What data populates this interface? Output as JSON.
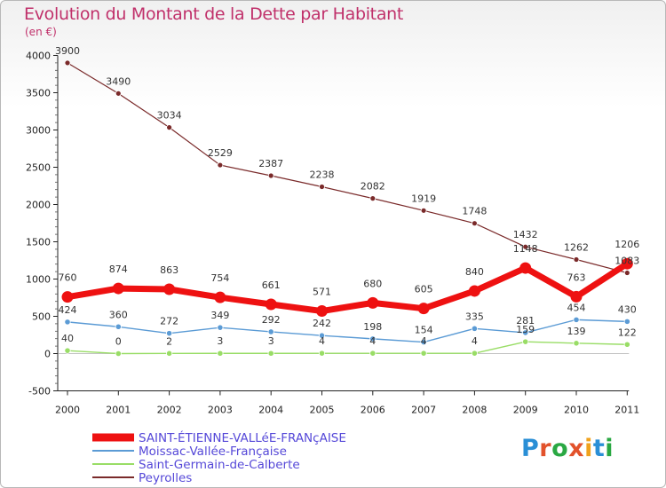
{
  "title": "Evolution du Montant de la Dette par Habitant",
  "unit": "(en €)",
  "logo": {
    "text": "Proxiti",
    "colors": [
      "#2a8fd6",
      "#e2522b",
      "#2aa843",
      "#e2522b",
      "#f0a21c",
      "#2a8fd6",
      "#2aa843"
    ]
  },
  "chart_data": {
    "type": "line",
    "title": "Evolution du Montant de la Dette par Habitant",
    "ylabel": "(en €)",
    "x": [
      "2000",
      "2001",
      "2002",
      "2003",
      "2004",
      "2005",
      "2006",
      "2007",
      "2008",
      "2009",
      "2010",
      "2011"
    ],
    "ylim": [
      -500,
      4000
    ],
    "yticks": [
      -500,
      0,
      500,
      1000,
      1500,
      2000,
      2500,
      3000,
      3500,
      4000
    ],
    "legend_position": "bottom-left",
    "series": [
      {
        "name": "SAINT-ÉTIENNE-VALLéE-FRANçAISE",
        "color": "#ee1111",
        "values": [
          760,
          874,
          863,
          754,
          661,
          571,
          680,
          605,
          840,
          1148,
          763,
          1206
        ]
      },
      {
        "name": "Moissac-Vallée-Française",
        "color": "#5b9bd5",
        "values": [
          424,
          360,
          272,
          349,
          292,
          242,
          198,
          154,
          335,
          281,
          454,
          430
        ],
        "labels": [
          "424",
          "360",
          "272",
          "349",
          "292",
          "242",
          "198",
          "154",
          "335",
          "281",
          "454",
          "430"
        ]
      },
      {
        "name": "Saint-Germain-de-Calberte",
        "color": "#99dd66",
        "values": [
          40,
          0,
          2,
          3,
          3,
          4,
          4,
          4,
          4,
          159,
          139,
          122
        ]
      },
      {
        "name": "Peyrolles",
        "color": "#7a2a2a",
        "values": [
          3900,
          3490,
          3034,
          2529,
          2387,
          2238,
          2082,
          1919,
          1748,
          1432,
          1262,
          1083
        ]
      }
    ]
  }
}
